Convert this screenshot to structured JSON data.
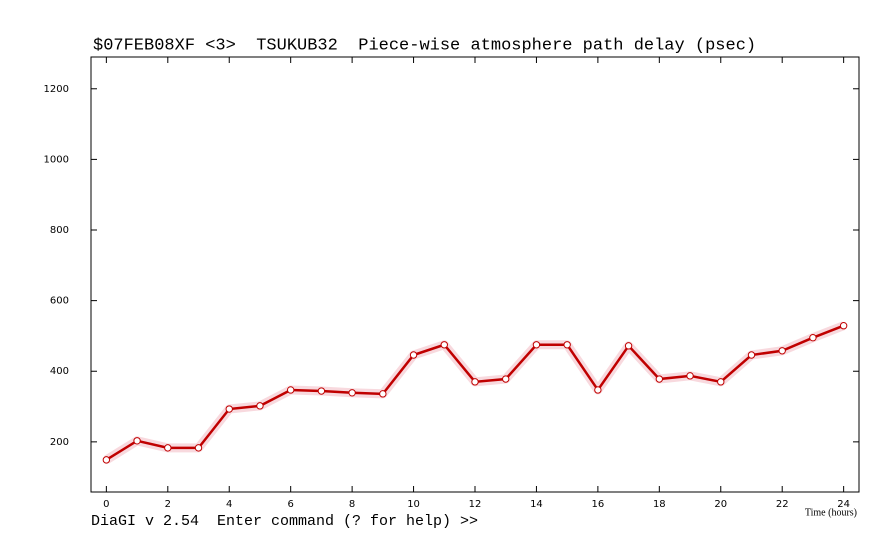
{
  "chart_data": {
    "type": "line",
    "title": "$07FEB08XF <3>  TSUKUB32  Piece-wise atmosphere path delay (psec)",
    "x_label": "Time (hours)",
    "x": [
      0,
      1,
      2,
      3,
      4,
      5,
      6,
      7,
      8,
      9,
      10,
      11,
      12,
      13,
      14,
      15,
      16,
      17,
      18,
      19,
      20,
      21,
      22,
      23,
      24
    ],
    "series": [
      {
        "color": "#c00000",
        "values": [
          149,
          203,
          183,
          183,
          293,
          302,
          347,
          344,
          339,
          336,
          446,
          475,
          370,
          378,
          475,
          475,
          347,
          472,
          378,
          387,
          370,
          446,
          458,
          495,
          529
        ]
      }
    ],
    "xlim": [
      -0.5,
      24.5
    ],
    "xticks": [
      0,
      2,
      4,
      6,
      8,
      10,
      12,
      14,
      16,
      18,
      20,
      22,
      24
    ],
    "ylim": [
      58,
      1290
    ],
    "yticks": [
      200,
      400,
      600,
      800,
      1000,
      1200
    ]
  },
  "prompt": "DiaGI v 2.54  Enter command (? for help) >>"
}
